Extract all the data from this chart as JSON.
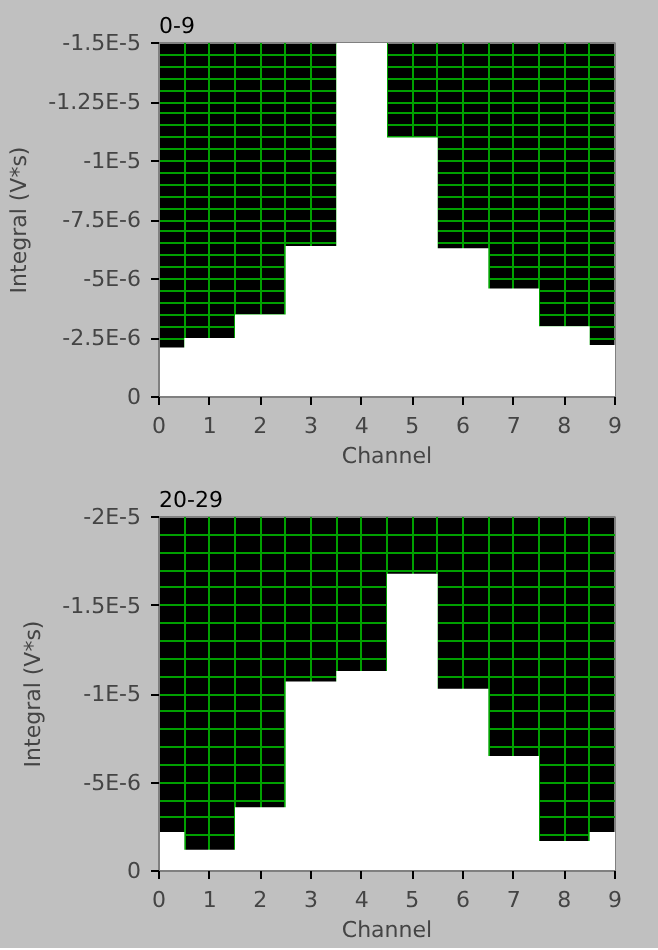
{
  "chart_data": [
    {
      "type": "area",
      "title": "0-9",
      "xlabel": "Channel",
      "ylabel": "Integral (V*s)",
      "x": [
        0,
        1,
        2,
        3,
        4,
        5,
        6,
        7,
        8,
        9
      ],
      "values": [
        -2.1e-06,
        -2.5e-06,
        -3.5e-06,
        -6.4e-06,
        -1.5e-05,
        -1.1e-05,
        -6.3e-06,
        -4.6e-06,
        -3e-06,
        -2.2e-06
      ],
      "color": "#ffffff",
      "xlim": [
        0,
        9
      ],
      "xticks": [
        0,
        1,
        2,
        3,
        4,
        5,
        6,
        7,
        8,
        9
      ],
      "ylim": [
        0,
        -1.5e-05
      ],
      "yticks": [
        {
          "value": 0,
          "label": "0"
        },
        {
          "value": -2.5e-06,
          "label": "-2.5E-6"
        },
        {
          "value": -5e-06,
          "label": "-5E-6"
        },
        {
          "value": -7.5e-06,
          "label": "-7.5E-6"
        },
        {
          "value": -1e-05,
          "label": "-1E-5"
        },
        {
          "value": -1.25e-05,
          "label": "-1.25E-5"
        },
        {
          "value": -1.5e-05,
          "label": "-1.5E-5"
        }
      ],
      "grid": true
    },
    {
      "type": "area",
      "title": "20-29",
      "xlabel": "Channel",
      "ylabel": "Integral (V*s)",
      "x": [
        0,
        1,
        2,
        3,
        4,
        5,
        6,
        7,
        8,
        9
      ],
      "values": [
        -2.2e-06,
        -1.2e-06,
        -3.6e-06,
        -1.07e-05,
        -1.13e-05,
        -1.68e-05,
        -1.03e-05,
        -6.5e-06,
        -1.7e-06,
        -2.2e-06
      ],
      "color": "#ffffff",
      "xlim": [
        0,
        9
      ],
      "xticks": [
        0,
        1,
        2,
        3,
        4,
        5,
        6,
        7,
        8,
        9
      ],
      "ylim": [
        0,
        -2e-05
      ],
      "yticks": [
        {
          "value": 0,
          "label": "0"
        },
        {
          "value": -5e-06,
          "label": "-5E-6"
        },
        {
          "value": -1e-05,
          "label": "-1E-5"
        },
        {
          "value": -1.5e-05,
          "label": "-1.5E-5"
        },
        {
          "value": -2e-05,
          "label": "-2E-5"
        }
      ],
      "grid": true
    }
  ]
}
